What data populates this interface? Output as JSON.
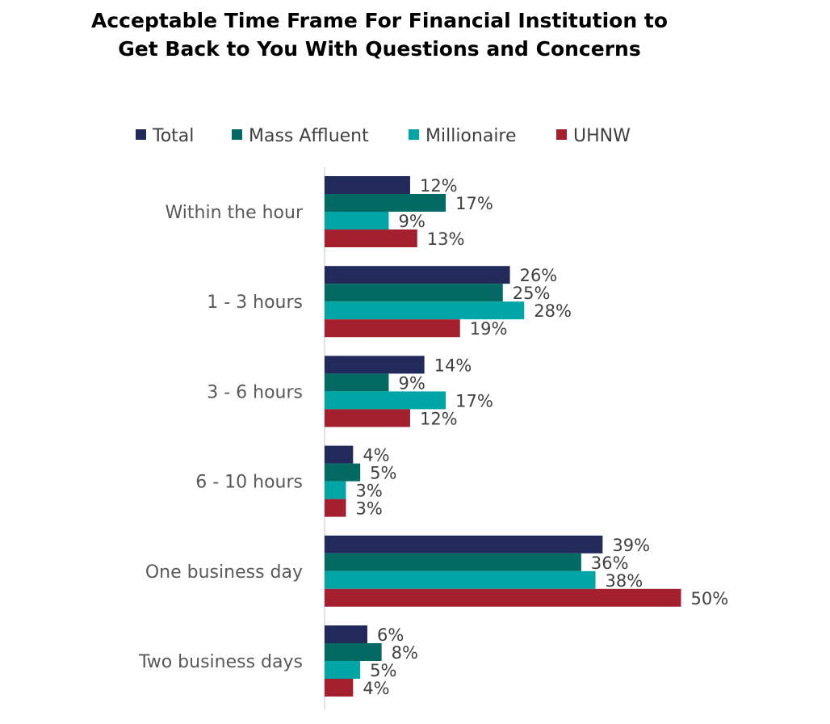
{
  "chart_data": {
    "type": "bar",
    "orientation": "horizontal",
    "title": "Acceptable Time Frame For Financial Institution to Get Back to You With Questions and Concerns",
    "title_lines": [
      "Acceptable Time Frame For Financial Institution to",
      "Get Back to You With Questions and Concerns"
    ],
    "categories": [
      "Within the hour",
      "1 - 3 hours",
      "3 - 6 hours",
      "6 - 10 hours",
      "One business day",
      "Two business days"
    ],
    "series": [
      {
        "name": "Total",
        "color": "#222a5b",
        "values": [
          12,
          26,
          14,
          4,
          39,
          6
        ]
      },
      {
        "name": "Mass Affluent",
        "color": "#026a63",
        "values": [
          17,
          25,
          9,
          5,
          36,
          8
        ]
      },
      {
        "name": "Millionaire",
        "color": "#00a6a6",
        "values": [
          9,
          28,
          17,
          3,
          38,
          5
        ]
      },
      {
        "name": "UHNW",
        "color": "#a4202e",
        "values": [
          13,
          19,
          12,
          3,
          50,
          4
        ]
      }
    ],
    "value_suffix": "%",
    "xlim": [
      0,
      50
    ],
    "legend_position": "top",
    "grid": false,
    "xlabel": "",
    "ylabel": ""
  }
}
